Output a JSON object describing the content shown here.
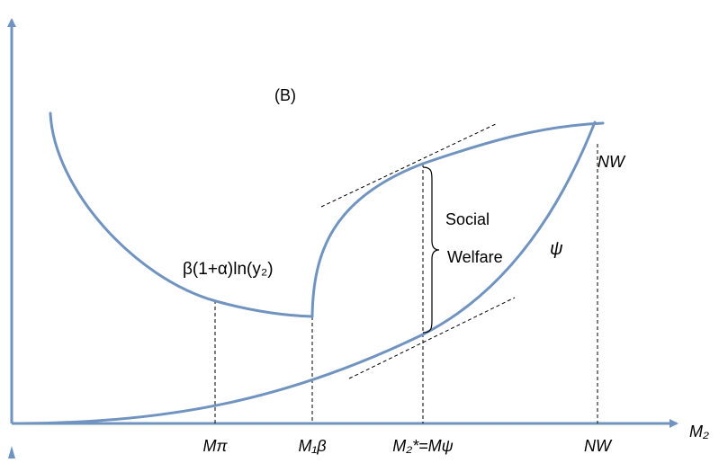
{
  "panel_label": "(B)",
  "curves": {
    "left_curve_label": "β(1+α)ln(y₂)",
    "psi_label": "ψ"
  },
  "axes": {
    "x_label": "M₂"
  },
  "annotations": {
    "nw_top": "NW",
    "social": "Social",
    "welfare": "Welfare"
  },
  "x_ticks": [
    "Mπ",
    "M₁β",
    "M₂*=Mψ",
    "NW"
  ],
  "colors": {
    "curve": "#7094bf",
    "axis": "#7094bf",
    "guide": "#000000"
  }
}
